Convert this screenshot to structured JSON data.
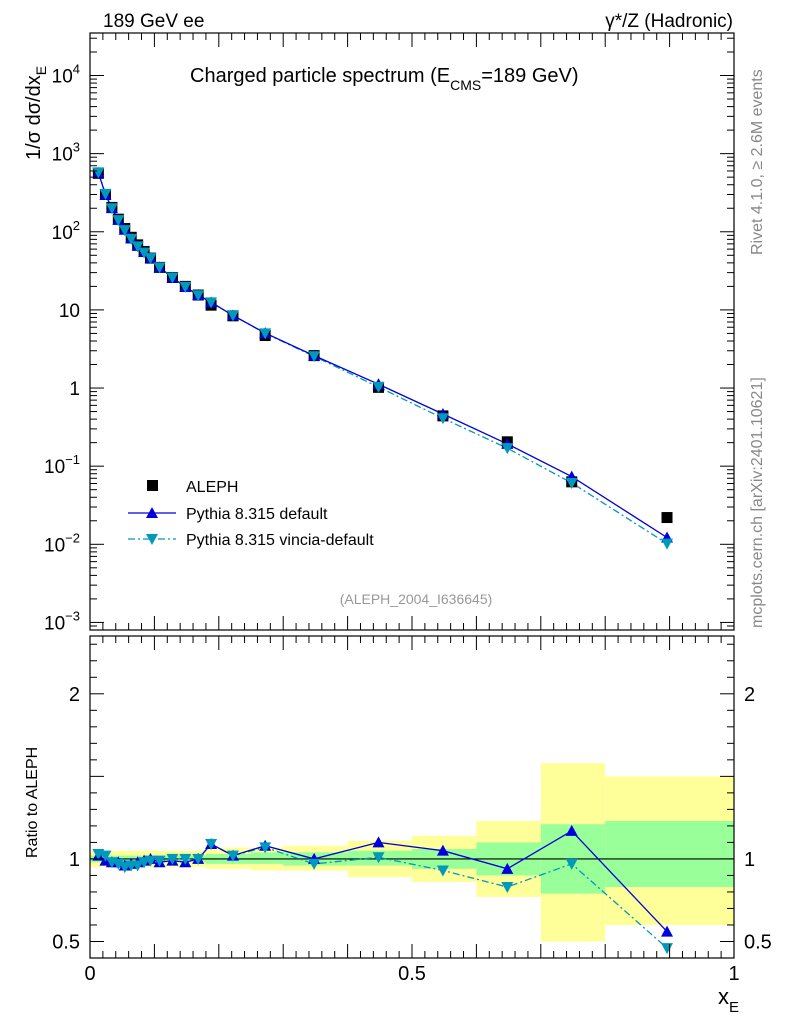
{
  "header": {
    "left_label": "189 GeV ee",
    "right_label": "γ*/Z (Hadronic)"
  },
  "side_labels": {
    "rivet": "Rivet 4.1.0, ≥ 2.6M events",
    "mcplots": "mcplots.cern.ch [arXiv:2401.10621]"
  },
  "chart_data": {
    "type": "line",
    "title": "Charged particle spectrum (E_CMS=189 GeV)",
    "title_main": "Charged particle spectrum (E",
    "title_sub": "CMS",
    "title_end": "=189 GeV)",
    "analysis_id": "(ALEPH_2004_I636645)",
    "xlabel": "x",
    "xlabel_sub": "E",
    "ylabel_prefix": "1/σ  dσ/dx",
    "ylabel_sub": "E",
    "ratio_ylabel": "Ratio to ALEPH",
    "xlim": [
      0,
      1
    ],
    "ylim": [
      0.0008,
      35000
    ],
    "ratio_ylim": [
      0.4,
      2.35
    ],
    "x_ticks": [
      {
        "value": 0,
        "label": "0"
      },
      {
        "value": 0.5,
        "label": "0.5"
      },
      {
        "value": 1,
        "label": "1"
      }
    ],
    "y_ticks": [
      {
        "value": 0.001,
        "base": "10",
        "exp": "−3"
      },
      {
        "value": 0.01,
        "base": "10",
        "exp": "−2"
      },
      {
        "value": 0.1,
        "base": "10",
        "exp": "−1"
      },
      {
        "value": 1,
        "base": "1",
        "exp": ""
      },
      {
        "value": 10,
        "base": "10",
        "exp": ""
      },
      {
        "value": 100,
        "base": "10",
        "exp": "2"
      },
      {
        "value": 1000,
        "base": "10",
        "exp": "3"
      },
      {
        "value": 10000,
        "base": "10",
        "exp": "4"
      }
    ],
    "ratio_ticks": [
      {
        "value": 0.5,
        "label": "0.5"
      },
      {
        "value": 1,
        "label": "1"
      },
      {
        "value": 2,
        "label": "2"
      }
    ],
    "legend": [
      "ALEPH",
      "Pythia 8.315 default",
      "Pythia 8.315 vincia-default"
    ],
    "colors": {
      "data": "#000000",
      "default": "#0000dd",
      "vincia": "#0099bb",
      "band_outer": "#ffff99",
      "band_inner": "#99ff99"
    },
    "bins": [
      {
        "lo": 0.0,
        "hi": 0.02
      },
      {
        "lo": 0.02,
        "hi": 0.03
      },
      {
        "lo": 0.03,
        "hi": 0.04
      },
      {
        "lo": 0.04,
        "hi": 0.05
      },
      {
        "lo": 0.05,
        "hi": 0.06
      },
      {
        "lo": 0.06,
        "hi": 0.07
      },
      {
        "lo": 0.07,
        "hi": 0.08
      },
      {
        "lo": 0.08,
        "hi": 0.09
      },
      {
        "lo": 0.09,
        "hi": 0.1
      },
      {
        "lo": 0.1,
        "hi": 0.12
      },
      {
        "lo": 0.12,
        "hi": 0.14
      },
      {
        "lo": 0.14,
        "hi": 0.16
      },
      {
        "lo": 0.16,
        "hi": 0.18
      },
      {
        "lo": 0.18,
        "hi": 0.2
      },
      {
        "lo": 0.2,
        "hi": 0.25
      },
      {
        "lo": 0.25,
        "hi": 0.3
      },
      {
        "lo": 0.3,
        "hi": 0.4
      },
      {
        "lo": 0.4,
        "hi": 0.5
      },
      {
        "lo": 0.5,
        "hi": 0.6
      },
      {
        "lo": 0.6,
        "hi": 0.7
      },
      {
        "lo": 0.7,
        "hi": 0.8
      },
      {
        "lo": 0.8,
        "hi": 1.0
      }
    ],
    "x": [
      0.013,
      0.024,
      0.034,
      0.044,
      0.054,
      0.064,
      0.074,
      0.084,
      0.094,
      0.108,
      0.128,
      0.148,
      0.168,
      0.188,
      0.222,
      0.272,
      0.348,
      0.448,
      0.548,
      0.648,
      0.748,
      0.896
    ],
    "series": [
      {
        "name": "ALEPH",
        "values": [
          560,
          300,
          205,
          145,
          110,
          85,
          68,
          56,
          46,
          35,
          26,
          20,
          15.5,
          11.5,
          8.4,
          4.7,
          2.6,
          1.02,
          0.44,
          0.205,
          0.063,
          0.022
        ]
      },
      {
        "name": "Pythia 8.315 default",
        "values": [
          570,
          298,
          201,
          142,
          106,
          82,
          66,
          55,
          46,
          35,
          26,
          19.7,
          15.5,
          12.5,
          8.5,
          5.05,
          2.6,
          1.12,
          0.465,
          0.193,
          0.0735,
          0.0122
        ]
      },
      {
        "name": "Pythia 8.315 vincia-default",
        "values": [
          575,
          305,
          200,
          141,
          105,
          81,
          65,
          54,
          46,
          35,
          26,
          19.7,
          15.4,
          12.5,
          8.5,
          5.0,
          2.55,
          1.03,
          0.41,
          0.17,
          0.061,
          0.0102
        ]
      }
    ],
    "ratio_series": [
      {
        "name": "Pythia 8.315 default",
        "values": [
          1.02,
          0.99,
          0.98,
          0.98,
          0.96,
          0.97,
          0.98,
          0.99,
          1.0,
          0.98,
          0.99,
          0.98,
          1.0,
          1.09,
          1.02,
          1.08,
          1.0,
          1.1,
          1.05,
          0.94,
          1.17,
          0.56
        ]
      },
      {
        "name": "Pythia 8.315 vincia-default",
        "values": [
          1.03,
          1.02,
          0.98,
          0.97,
          0.95,
          0.96,
          0.96,
          0.98,
          0.99,
          0.99,
          1.0,
          1.0,
          1.0,
          1.09,
          1.02,
          1.07,
          0.97,
          1.01,
          0.93,
          0.83,
          0.97,
          0.46
        ]
      }
    ],
    "band_inner": [
      [
        0.98,
        1.02
      ],
      [
        0.98,
        1.02
      ],
      [
        0.98,
        1.02
      ],
      [
        0.98,
        1.02
      ],
      [
        0.98,
        1.02
      ],
      [
        0.98,
        1.02
      ],
      [
        0.98,
        1.02
      ],
      [
        0.98,
        1.02
      ],
      [
        0.98,
        1.02
      ],
      [
        0.98,
        1.02
      ],
      [
        0.98,
        1.02
      ],
      [
        0.98,
        1.02
      ],
      [
        0.98,
        1.02
      ],
      [
        0.97,
        1.03
      ],
      [
        0.97,
        1.03
      ],
      [
        0.97,
        1.04
      ],
      [
        0.96,
        1.04
      ],
      [
        0.96,
        1.05
      ],
      [
        0.94,
        1.06
      ],
      [
        0.9,
        1.1
      ],
      [
        0.79,
        1.21
      ],
      [
        0.83,
        1.23
      ]
    ],
    "band_outer": [
      [
        0.95,
        1.05
      ],
      [
        0.95,
        1.05
      ],
      [
        0.95,
        1.05
      ],
      [
        0.95,
        1.05
      ],
      [
        0.95,
        1.05
      ],
      [
        0.95,
        1.05
      ],
      [
        0.95,
        1.05
      ],
      [
        0.95,
        1.05
      ],
      [
        0.95,
        1.05
      ],
      [
        0.95,
        1.05
      ],
      [
        0.95,
        1.05
      ],
      [
        0.95,
        1.05
      ],
      [
        0.95,
        1.05
      ],
      [
        0.94,
        1.06
      ],
      [
        0.94,
        1.07
      ],
      [
        0.93,
        1.07
      ],
      [
        0.93,
        1.08
      ],
      [
        0.89,
        1.11
      ],
      [
        0.86,
        1.14
      ],
      [
        0.77,
        1.23
      ],
      [
        0.5,
        1.58
      ],
      [
        0.6,
        1.5
      ]
    ]
  }
}
